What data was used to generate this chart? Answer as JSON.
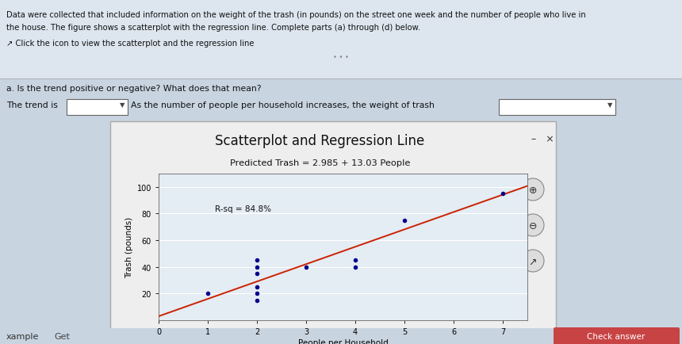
{
  "title": "Scatterplot and Regression Line",
  "equation_title": "Predicted Trash = 2.985 + 13.03 People",
  "rsq_label": "R-sq = 84.8%",
  "intercept": 2.985,
  "slope": 13.03,
  "scatter_x": [
    1,
    2,
    2,
    2,
    2,
    2,
    2,
    3,
    4,
    4,
    5,
    7
  ],
  "scatter_y": [
    20,
    15,
    20,
    25,
    35,
    40,
    45,
    40,
    40,
    45,
    75,
    95
  ],
  "scatter_color": "#00008B",
  "line_color": "#CC2200",
  "xlabel": "People per Household",
  "ylabel": "Trash (pounds)",
  "xlim": [
    0,
    7.5
  ],
  "ylim": [
    0,
    110
  ],
  "xticks": [
    0,
    1,
    2,
    3,
    4,
    5,
    6,
    7
  ],
  "yticks": [
    20,
    40,
    60,
    80,
    100
  ],
  "bg_color": "#c8d4e0",
  "panel_bg": "#f0f0f0",
  "plot_bg": "#e4ecf4",
  "text_color": "#111111"
}
